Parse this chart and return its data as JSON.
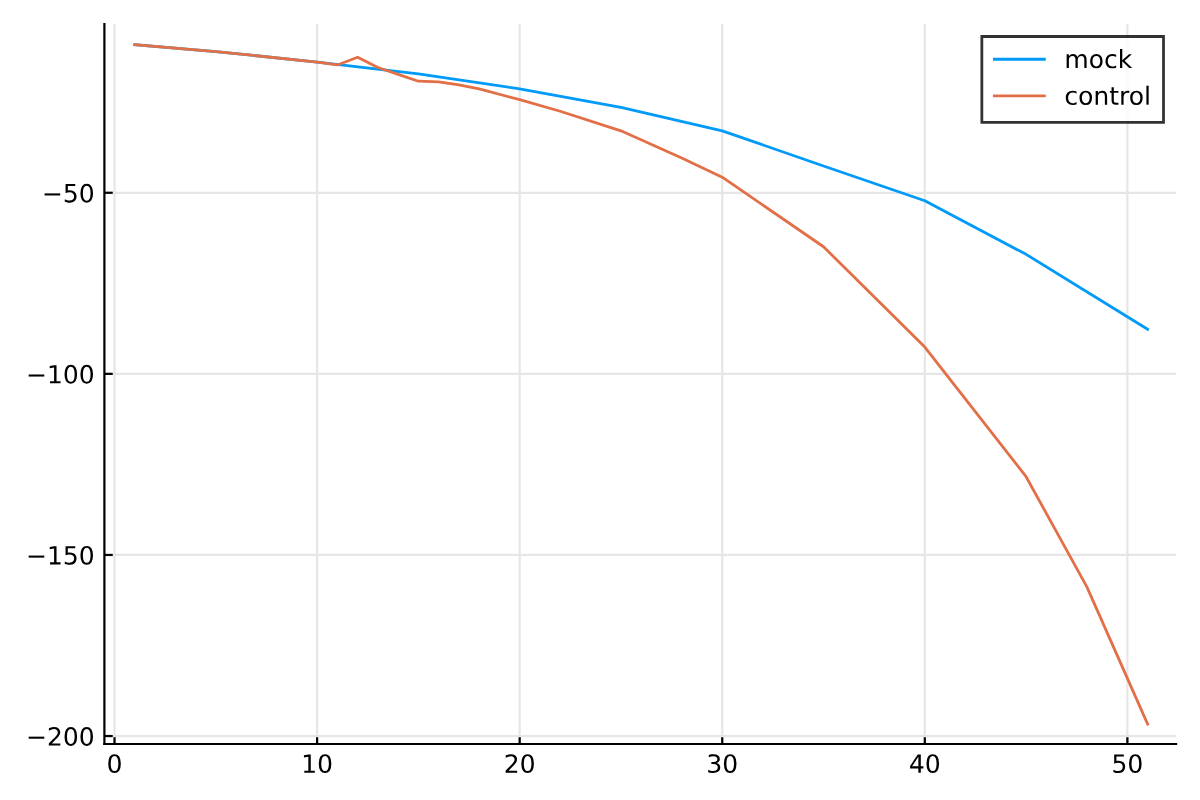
{
  "chart_data": {
    "type": "line",
    "xlim": [
      -0.5,
      52.4
    ],
    "ylim": [
      -202.2,
      -3.4
    ],
    "xticks": [
      0,
      10,
      20,
      30,
      40,
      50
    ],
    "yticks": [
      -200,
      -150,
      -100,
      -50
    ],
    "grid": true,
    "legend": "top right",
    "series": [
      {
        "name": "mock",
        "color": "#009af9",
        "x": [
          1,
          5,
          10,
          15,
          20,
          25,
          30,
          35,
          40,
          45,
          51
        ],
        "values": [
          -9.1,
          -11.0,
          -13.9,
          -17.2,
          -21.3,
          -26.4,
          -32.9,
          -42.6,
          -52.2,
          -67,
          -87.7
        ]
      },
      {
        "name": "control",
        "color": "#e26f46",
        "x": [
          1,
          5,
          10,
          11,
          12,
          13,
          14,
          15,
          16,
          17,
          18,
          20,
          22,
          25,
          28,
          30,
          35,
          40,
          45,
          48,
          51
        ],
        "values": [
          -9.1,
          -11.0,
          -13.9,
          -14.7,
          -12.6,
          -15.4,
          -17.3,
          -19.2,
          -19.4,
          -20.2,
          -21.3,
          -24.3,
          -27.5,
          -32.9,
          -40.4,
          -45.7,
          -64.9,
          -92.6,
          -128.4,
          -158.8,
          -196.7
        ]
      }
    ]
  }
}
